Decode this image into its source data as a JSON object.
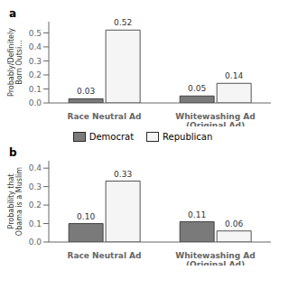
{
  "chart_data": [
    {
      "type": "bar",
      "title": "a",
      "y_label": "Probably/Definitely Born Outsi...",
      "categories": [
        "Race Neutral Ad",
        "Whitewashing Ad (Original Ad)"
      ],
      "series": [
        {
          "name": "Democrat",
          "color": "#7a7a7a",
          "values": [
            0.03,
            0.05
          ],
          "value_labels": [
            "0.03",
            "0.05"
          ]
        },
        {
          "name": "Republican",
          "color": "#f5f5f5",
          "values": [
            0.52,
            0.14
          ],
          "value_labels": [
            "0.52",
            "0.14"
          ]
        }
      ],
      "ylim": [
        0,
        0.58
      ],
      "yticks": [
        {
          "value": 0,
          "label": "0.0"
        },
        0.1,
        0.2,
        0.3,
        0.4,
        0.5
      ],
      "data_labels": true,
      "grid": false
    },
    {
      "type": "bar",
      "title": "b",
      "y_label": "Probability that Obama is a Muslim",
      "categories": [
        "Race Neutral Ad",
        "Whitewashing Ad (Original Ad)"
      ],
      "series": [
        {
          "name": "Democrat",
          "color": "#7a7a7a",
          "values": [
            0.1,
            0.11
          ],
          "value_labels": [
            "0.10",
            "0.11"
          ]
        },
        {
          "name": "Republican",
          "color": "#f5f5f5",
          "values": [
            0.33,
            0.06
          ],
          "value_labels": [
            "0.33",
            "0.06"
          ]
        }
      ],
      "ylim": [
        0,
        0.44
      ],
      "yticks": [
        {
          "value": 0,
          "label": "0.0"
        },
        0.1,
        0.2,
        0.3,
        0.4
      ],
      "data_labels": true,
      "grid": false
    }
  ]
}
